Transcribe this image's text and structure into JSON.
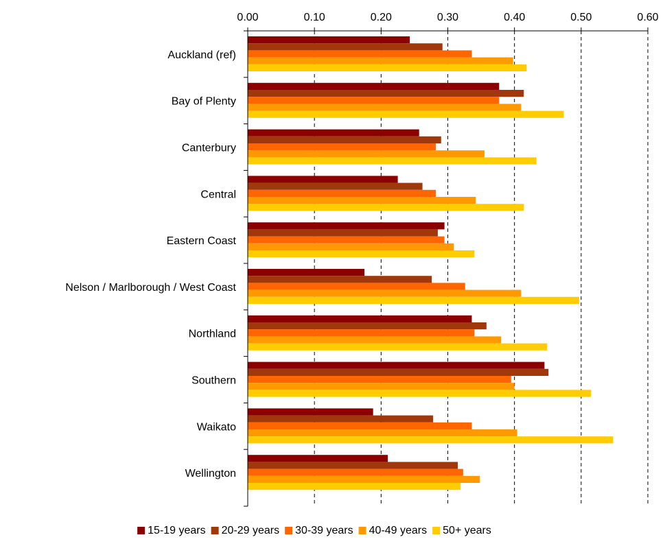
{
  "chart_data": {
    "type": "bar",
    "orientation": "horizontal",
    "title": "",
    "xlabel": "",
    "ylabel": "",
    "xlim": [
      0,
      0.6
    ],
    "x_ticks": [
      "0.00",
      "0.10",
      "0.20",
      "0.30",
      "0.40",
      "0.50",
      "0.60"
    ],
    "x_axis_position": "top",
    "grid": "vertical dashed",
    "legend_position": "bottom",
    "categories": [
      "Auckland (ref)",
      "Bay of Plenty",
      "Canterbury",
      "Central",
      "Eastern Coast",
      "Nelson / Marlborough / West Coast",
      "Northland",
      "Southern",
      "Waikato",
      "Wellington"
    ],
    "series": [
      {
        "name": "15-19 years",
        "color": "#8b0000",
        "values": [
          0.243,
          0.377,
          0.257,
          0.225,
          0.295,
          0.175,
          0.336,
          0.445,
          0.188,
          0.21
        ]
      },
      {
        "name": "20-29 years",
        "color": "#a0380c",
        "values": [
          0.292,
          0.414,
          0.29,
          0.262,
          0.285,
          0.276,
          0.358,
          0.451,
          0.278,
          0.315
        ]
      },
      {
        "name": "30-39 years",
        "color": "#ff6600",
        "values": [
          0.336,
          0.377,
          0.282,
          0.282,
          0.295,
          0.326,
          0.34,
          0.395,
          0.336,
          0.323
        ]
      },
      {
        "name": "40-49 years",
        "color": "#ff9900",
        "values": [
          0.398,
          0.41,
          0.355,
          0.342,
          0.309,
          0.41,
          0.38,
          0.4,
          0.404,
          0.348
        ]
      },
      {
        "name": "50+ years",
        "color": "#ffcc00",
        "values": [
          0.418,
          0.474,
          0.433,
          0.414,
          0.34,
          0.497,
          0.449,
          0.515,
          0.548,
          0.319
        ]
      }
    ]
  }
}
